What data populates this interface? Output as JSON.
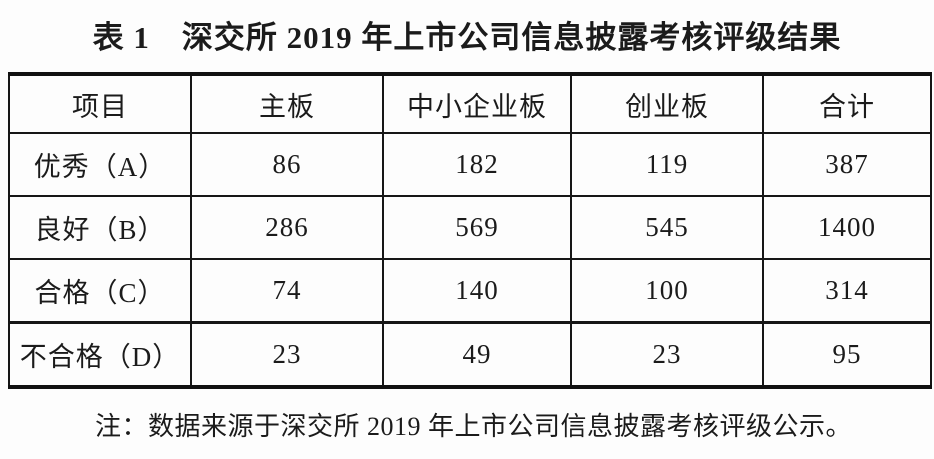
{
  "title": "表 1　深交所 2019 年上市公司信息披露考核评级结果",
  "table": {
    "headers": [
      "项目",
      "主板",
      "中小企业板",
      "创业板",
      "合计"
    ],
    "rows": [
      {
        "label": "优秀（A）",
        "values": [
          "86",
          "182",
          "119",
          "387"
        ]
      },
      {
        "label": "良好（B）",
        "values": [
          "286",
          "569",
          "545",
          "1400"
        ]
      },
      {
        "label": "合格（C）",
        "values": [
          "74",
          "140",
          "100",
          "314"
        ]
      },
      {
        "label": "不合格（D）",
        "values": [
          "23",
          "49",
          "23",
          "95"
        ]
      }
    ]
  },
  "note": "注：数据来源于深交所 2019 年上市公司信息披露考核评级公示。",
  "colors": {
    "text": "#1b1b1b",
    "border": "#161616",
    "background": "#fdfdfd"
  },
  "chart_data": {
    "type": "table",
    "title": "表 1 深交所 2019 年上市公司信息披露考核评级结果",
    "columns": [
      "项目",
      "主板",
      "中小企业板",
      "创业板",
      "合计"
    ],
    "rows": [
      [
        "优秀（A）",
        86,
        182,
        119,
        387
      ],
      [
        "良好（B）",
        286,
        569,
        545,
        1400
      ],
      [
        "合格（C）",
        74,
        140,
        100,
        314
      ],
      [
        "不合格（D）",
        23,
        49,
        23,
        95
      ]
    ],
    "note": "注：数据来源于深交所 2019 年上市公司信息披露考核评级公示。"
  }
}
